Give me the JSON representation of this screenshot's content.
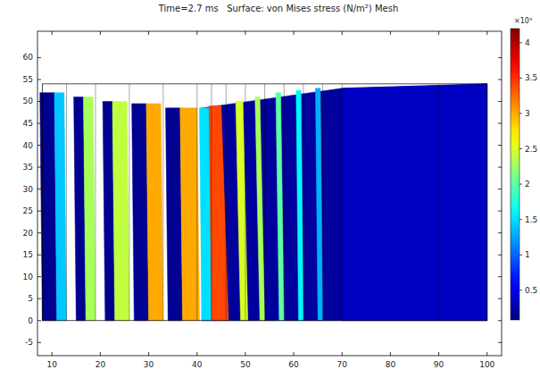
{
  "chart_data": {
    "type": "surface",
    "title": "Time=2.7 ms   Surface: von Mises stress (N/m²) Mesh",
    "xlim": [
      7,
      103
    ],
    "ylim": [
      -8,
      66
    ],
    "xticks": [
      10,
      20,
      30,
      40,
      50,
      60,
      70,
      80,
      90,
      100
    ],
    "yticks": [
      -5,
      0,
      5,
      10,
      15,
      20,
      25,
      30,
      35,
      40,
      45,
      50,
      55,
      60
    ],
    "colorbar": {
      "range": [
        0.08,
        4.2
      ],
      "ticks": [
        0.5,
        1,
        1.5,
        2,
        2.5,
        3,
        3.5,
        4
      ],
      "multiplier_label": "×10⁹"
    },
    "undeformed_outline": {
      "x": [
        8,
        100
      ],
      "y": [
        0,
        54
      ]
    },
    "undeformed_lines_x": [
      13,
      19,
      26,
      33,
      40,
      43,
      46,
      50,
      54,
      58,
      62,
      66,
      70,
      90
    ],
    "cells": [
      {
        "x": [
          8,
          11,
          10.5,
          7.5
        ],
        "y": [
          0,
          0,
          52,
          52
        ],
        "value": 0.15
      },
      {
        "x": [
          11,
          13,
          12.5,
          10.5
        ],
        "y": [
          0,
          0,
          52,
          52
        ],
        "value": 1.4
      },
      {
        "x": [
          15,
          17,
          16.5,
          14.5
        ],
        "y": [
          0,
          0,
          51,
          51
        ],
        "value": 0.15
      },
      {
        "x": [
          17,
          19,
          18.5,
          16.5
        ],
        "y": [
          0,
          0,
          51,
          51
        ],
        "value": 2.3
      },
      {
        "x": [
          21,
          23,
          22.5,
          20.5
        ],
        "y": [
          0,
          0,
          50,
          50
        ],
        "value": 0.15
      },
      {
        "x": [
          23,
          26,
          25.5,
          22.5
        ],
        "y": [
          0,
          0,
          50,
          50
        ],
        "value": 2.4
      },
      {
        "x": [
          27,
          30,
          29.5,
          26.5
        ],
        "y": [
          0,
          0,
          49.5,
          49.5
        ],
        "value": 0.15
      },
      {
        "x": [
          30,
          33,
          32.5,
          29.5
        ],
        "y": [
          0,
          0,
          49.5,
          49.5
        ],
        "value": 3.0
      },
      {
        "x": [
          34,
          37,
          36.5,
          33.5
        ],
        "y": [
          0,
          0,
          48.5,
          48.5
        ],
        "value": 0.15
      },
      {
        "x": [
          37,
          40.5,
          40,
          36.5
        ],
        "y": [
          0,
          0,
          48.5,
          48.5
        ],
        "value": 3.0
      },
      {
        "x": [
          41,
          100,
          100,
          70,
          41
        ],
        "y": [
          0,
          0,
          54,
          53,
          48.5
        ],
        "value": 0.2
      },
      {
        "x": [
          70,
          100,
          100,
          70
        ],
        "y": [
          0,
          0,
          54,
          53
        ],
        "value": 0.35
      },
      {
        "x": [
          41,
          43,
          42.5,
          40.5
        ],
        "y": [
          0,
          0,
          48.5,
          48.5
        ],
        "value": 1.5
      },
      {
        "x": [
          43,
          46.5,
          45,
          42.5
        ],
        "y": [
          0,
          0,
          49,
          49
        ],
        "value": 3.4
      },
      {
        "x": [
          49,
          50.5,
          49.5,
          48
        ],
        "y": [
          0,
          0,
          50,
          50
        ],
        "value": 2.5
      },
      {
        "x": [
          53,
          54,
          53,
          52
        ],
        "y": [
          0,
          0,
          51,
          51
        ],
        "value": 2.3
      },
      {
        "x": [
          57,
          58,
          57.3,
          56.3
        ],
        "y": [
          0,
          0,
          52,
          52
        ],
        "value": 2.0
      },
      {
        "x": [
          61,
          62,
          61.5,
          60.5
        ],
        "y": [
          0,
          0,
          52.5,
          52.5
        ],
        "value": 1.6
      },
      {
        "x": [
          65,
          66,
          65.5,
          64.5
        ],
        "y": [
          0,
          0,
          53,
          53
        ],
        "value": 1.3
      }
    ]
  }
}
